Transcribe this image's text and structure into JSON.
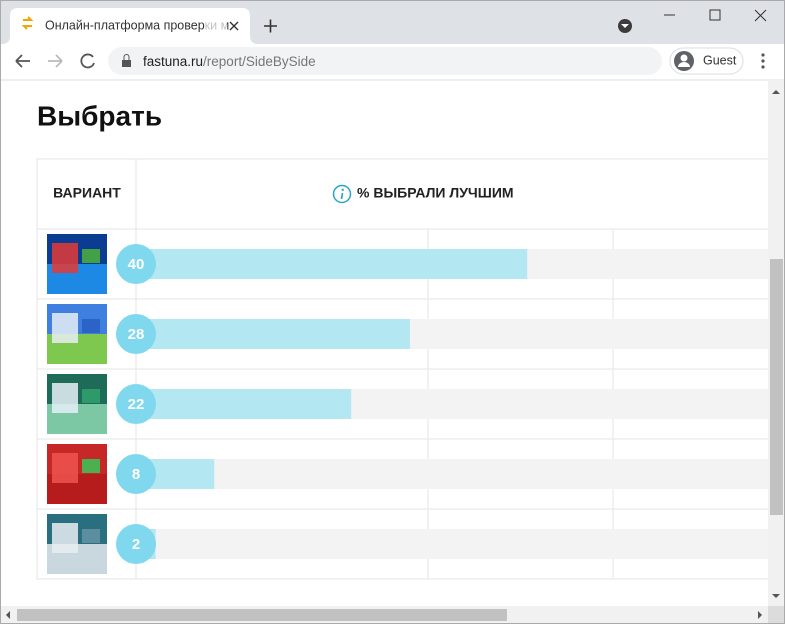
{
  "browser": {
    "tab_title": "Онлайн-платформа проверки м",
    "url_host": "fastuna.ru",
    "url_path": "/report/SideBySide",
    "profile": "Guest"
  },
  "page": {
    "heading": "Выбрать"
  },
  "chart_data": {
    "type": "bar",
    "orientation": "horizontal",
    "columns": [
      "ВАРИАНТ",
      "% ВЫБРАЛИ ЛУЧШИМ"
    ],
    "values": [
      40,
      28,
      22,
      8,
      2
    ],
    "xlim": [
      0,
      100
    ],
    "color": "#b3e7f2",
    "track_color": "#f3f3f3",
    "label_color": "#7fd8ee"
  }
}
